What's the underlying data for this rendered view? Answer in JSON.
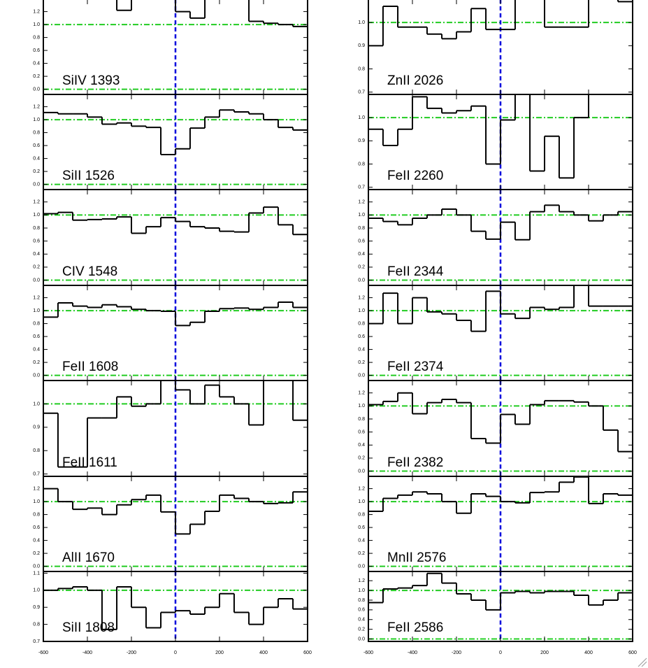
{
  "chart_data": [
    {
      "type": "step",
      "label": "SiIV 1393",
      "xlim": [
        -600,
        600
      ],
      "xticks": [
        -600,
        -400,
        -200,
        0,
        200,
        400,
        600
      ],
      "ylim": [
        -0.08,
        1.39
      ],
      "yticks": [
        {
          "value": 0,
          "label": "0.0"
        },
        0.2,
        0.4,
        0.6,
        0.8,
        {
          "value": 1,
          "label": "1.0"
        },
        1.2
      ],
      "hlines": [
        0,
        1
      ],
      "vlines": [
        0
      ],
      "color": "#000000",
      "x": [
        -567,
        -500,
        -433,
        -367,
        -300,
        -233,
        -167,
        -100,
        -33,
        33,
        100,
        167,
        233,
        300,
        367,
        433,
        500,
        567
      ],
      "values": [
        1.45,
        1.45,
        1.45,
        1.45,
        1.45,
        1.22,
        1.45,
        1.45,
        1.45,
        1.2,
        1.1,
        1.45,
        1.45,
        1.45,
        1.05,
        1.02,
        1.0,
        0.97
      ]
    },
    {
      "type": "step",
      "label": "SiII 1526",
      "xlim": [
        -600,
        600
      ],
      "xticks": [
        -600,
        -400,
        -200,
        0,
        200,
        400,
        600
      ],
      "ylim": [
        -0.08,
        1.39
      ],
      "yticks": [
        {
          "value": 0,
          "label": "0.0"
        },
        0.2,
        0.4,
        0.6,
        0.8,
        {
          "value": 1,
          "label": "1.0"
        },
        1.2
      ],
      "hlines": [
        0,
        1
      ],
      "vlines": [
        0
      ],
      "color": "#000000",
      "x": [
        -567,
        -500,
        -433,
        -367,
        -300,
        -233,
        -167,
        -100,
        -33,
        33,
        100,
        167,
        233,
        300,
        367,
        433,
        500,
        567
      ],
      "values": [
        1.11,
        1.09,
        1.09,
        1.04,
        0.93,
        0.95,
        0.9,
        0.88,
        0.46,
        0.55,
        0.87,
        1.04,
        1.15,
        1.12,
        1.09,
        1.0,
        0.88,
        0.84
      ]
    },
    {
      "type": "step",
      "label": "CIV 1548",
      "xlim": [
        -600,
        600
      ],
      "xticks": [
        -600,
        -400,
        -200,
        0,
        200,
        400,
        600
      ],
      "ylim": [
        -0.08,
        1.39
      ],
      "yticks": [
        {
          "value": 0,
          "label": "0.0"
        },
        0.2,
        0.4,
        0.6,
        0.8,
        {
          "value": 1,
          "label": "1.0"
        },
        1.2
      ],
      "hlines": [
        0,
        1
      ],
      "vlines": [
        0
      ],
      "color": "#000000",
      "x": [
        -567,
        -500,
        -433,
        -367,
        -300,
        -233,
        -167,
        -100,
        -33,
        33,
        100,
        167,
        233,
        300,
        367,
        433,
        500,
        567
      ],
      "values": [
        1.02,
        1.04,
        0.92,
        0.93,
        0.94,
        0.97,
        0.72,
        0.82,
        0.96,
        0.9,
        0.82,
        0.8,
        0.75,
        0.74,
        1.03,
        1.12,
        0.85,
        0.7
      ]
    },
    {
      "type": "step",
      "label": "FeII 1608",
      "xlim": [
        -600,
        600
      ],
      "xticks": [
        -600,
        -400,
        -200,
        0,
        200,
        400,
        600
      ],
      "ylim": [
        -0.08,
        1.39
      ],
      "yticks": [
        {
          "value": 0,
          "label": "0.0"
        },
        0.2,
        0.4,
        0.6,
        0.8,
        {
          "value": 1,
          "label": "1.0"
        },
        1.2
      ],
      "hlines": [
        0,
        1
      ],
      "vlines": [
        0
      ],
      "color": "#000000",
      "x": [
        -567,
        -500,
        -433,
        -367,
        -300,
        -233,
        -167,
        -100,
        -33,
        33,
        100,
        167,
        233,
        300,
        367,
        433,
        500,
        567
      ],
      "values": [
        0.9,
        1.12,
        1.07,
        1.05,
        1.09,
        1.06,
        1.02,
        1.0,
        0.99,
        0.77,
        0.82,
        0.99,
        1.03,
        1.04,
        1.02,
        1.05,
        1.13,
        1.05
      ]
    },
    {
      "type": "step",
      "label": "FeII 1611",
      "xlim": [
        -600,
        600
      ],
      "xticks": [
        -600,
        -400,
        -200,
        0,
        200,
        400,
        600
      ],
      "ylim": [
        0.69,
        1.1
      ],
      "yticks": [
        0.7,
        0.8,
        0.9,
        {
          "value": 1,
          "label": "1.0"
        },
        1.1
      ],
      "hlines": [
        1
      ],
      "vlines": [
        0
      ],
      "color": "#000000",
      "x": [
        -567,
        -500,
        -433,
        -367,
        -300,
        -233,
        -167,
        -100,
        -33,
        33,
        100,
        167,
        233,
        300,
        367,
        433,
        500,
        567
      ],
      "values": [
        0.96,
        0.73,
        0.73,
        0.94,
        0.94,
        1.03,
        0.99,
        1.0,
        1.12,
        1.06,
        1.0,
        1.08,
        1.03,
        1.0,
        0.91,
        1.12,
        1.12,
        0.93
      ]
    },
    {
      "type": "step",
      "label": "AlII 1670",
      "xlim": [
        -600,
        600
      ],
      "xticks": [
        -600,
        -400,
        -200,
        0,
        200,
        400,
        600
      ],
      "ylim": [
        -0.08,
        1.39
      ],
      "yticks": [
        {
          "value": 0,
          "label": "0.0"
        },
        0.2,
        0.4,
        0.6,
        0.8,
        {
          "value": 1,
          "label": "1.0"
        },
        1.2
      ],
      "hlines": [
        0,
        1
      ],
      "vlines": [
        0
      ],
      "color": "#000000",
      "x": [
        -567,
        -500,
        -433,
        -367,
        -300,
        -233,
        -167,
        -100,
        -33,
        33,
        100,
        167,
        233,
        300,
        367,
        433,
        500,
        567
      ],
      "values": [
        1.2,
        1.0,
        0.88,
        0.9,
        0.8,
        0.95,
        1.03,
        1.1,
        0.84,
        0.5,
        0.65,
        0.85,
        1.1,
        1.05,
        1.0,
        0.97,
        0.98,
        1.15
      ]
    },
    {
      "type": "step",
      "label": "SiII 1808",
      "xlim": [
        -600,
        600
      ],
      "xticks": [
        {
          "value": -600,
          "label": "-600"
        },
        {
          "value": -400,
          "label": "-400"
        },
        {
          "value": -200,
          "label": "-200"
        },
        0,
        200,
        400,
        600
      ],
      "ylim": [
        0.7,
        1.11
      ],
      "yticks": [
        0.7,
        0.8,
        0.9,
        {
          "value": 1,
          "label": "1.0"
        },
        1.1
      ],
      "hlines": [
        1
      ],
      "vlines": [
        0
      ],
      "color": "#000000",
      "x": [
        -567,
        -500,
        -433,
        -367,
        -300,
        -233,
        -167,
        -100,
        -33,
        33,
        100,
        167,
        233,
        300,
        367,
        433,
        500,
        567
      ],
      "values": [
        1.0,
        1.01,
        1.02,
        1.0,
        0.77,
        1.02,
        0.9,
        0.78,
        0.87,
        0.88,
        0.86,
        0.9,
        0.98,
        0.87,
        0.8,
        0.9,
        0.95,
        0.89
      ]
    },
    {
      "type": "step",
      "label": "ZnII 2026",
      "xlim": [
        -600,
        600
      ],
      "xticks": [
        -600,
        -400,
        -200,
        0,
        200,
        400,
        600
      ],
      "ylim": [
        0.69,
        1.1
      ],
      "yticks": [
        0.7,
        0.8,
        0.9,
        {
          "value": 1,
          "label": "1.0"
        },
        1.1
      ],
      "hlines": [
        1
      ],
      "vlines": [
        0
      ],
      "color": "#000000",
      "x": [
        -567,
        -500,
        -433,
        -367,
        -300,
        -233,
        -167,
        -100,
        -33,
        33,
        100,
        167,
        233,
        300,
        367,
        433,
        500,
        567
      ],
      "values": [
        0.9,
        1.07,
        0.98,
        0.98,
        0.95,
        0.93,
        0.96,
        1.06,
        0.97,
        0.97,
        1.15,
        1.15,
        0.98,
        0.98,
        0.98,
        1.15,
        1.15,
        1.09
      ]
    },
    {
      "type": "step",
      "label": "FeII 2260",
      "xlim": [
        -600,
        600
      ],
      "xticks": [
        -600,
        -400,
        -200,
        0,
        200,
        400,
        600
      ],
      "ylim": [
        0.69,
        1.1
      ],
      "yticks": [
        0.7,
        0.8,
        0.9,
        {
          "value": 1,
          "label": "1.0"
        },
        1.1
      ],
      "hlines": [
        1
      ],
      "vlines": [
        0
      ],
      "color": "#000000",
      "x": [
        -567,
        -500,
        -433,
        -367,
        -300,
        -233,
        -167,
        -100,
        -33,
        33,
        100,
        167,
        233,
        300,
        367,
        433,
        500,
        567
      ],
      "values": [
        0.95,
        0.88,
        0.95,
        1.09,
        1.04,
        1.02,
        1.03,
        1.05,
        0.8,
        0.99,
        1.12,
        0.77,
        0.92,
        0.74,
        1.0,
        1.12,
        1.12,
        1.12
      ]
    },
    {
      "type": "step",
      "label": "FeII 2344",
      "xlim": [
        -600,
        600
      ],
      "xticks": [
        -600,
        -400,
        -200,
        0,
        200,
        400,
        600
      ],
      "ylim": [
        -0.08,
        1.39
      ],
      "yticks": [
        {
          "value": 0,
          "label": "0.0"
        },
        0.2,
        0.4,
        0.6,
        0.8,
        {
          "value": 1,
          "label": "1.0"
        },
        1.2
      ],
      "hlines": [
        0,
        1
      ],
      "vlines": [
        0
      ],
      "color": "#000000",
      "x": [
        -567,
        -500,
        -433,
        -367,
        -300,
        -233,
        -167,
        -100,
        -33,
        33,
        100,
        167,
        233,
        300,
        367,
        433,
        500,
        567
      ],
      "values": [
        0.95,
        0.9,
        0.85,
        0.95,
        1.0,
        1.09,
        1.0,
        0.75,
        0.63,
        0.89,
        0.62,
        1.05,
        1.15,
        1.05,
        1.0,
        0.91,
        1.0,
        1.05
      ]
    },
    {
      "type": "step",
      "label": "FeII 2374",
      "xlim": [
        -600,
        600
      ],
      "xticks": [
        -600,
        -400,
        -200,
        0,
        200,
        400,
        600
      ],
      "ylim": [
        -0.08,
        1.39
      ],
      "yticks": [
        {
          "value": 0,
          "label": "0.0"
        },
        0.2,
        0.4,
        0.6,
        0.8,
        {
          "value": 1,
          "label": "1.0"
        },
        1.2
      ],
      "hlines": [
        0,
        1
      ],
      "vlines": [
        0
      ],
      "color": "#000000",
      "x": [
        -567,
        -500,
        -433,
        -367,
        -300,
        -233,
        -167,
        -100,
        -33,
        33,
        100,
        167,
        233,
        300,
        367,
        433,
        500,
        567
      ],
      "values": [
        0.8,
        1.27,
        0.8,
        1.2,
        0.98,
        0.95,
        0.85,
        0.68,
        1.3,
        0.95,
        0.88,
        1.05,
        1.02,
        1.05,
        1.45,
        1.07,
        1.07,
        1.07
      ]
    },
    {
      "type": "step",
      "label": "FeII 2382",
      "xlim": [
        -600,
        600
      ],
      "xticks": [
        -600,
        -400,
        -200,
        0,
        200,
        400,
        600
      ],
      "ylim": [
        -0.08,
        1.39
      ],
      "yticks": [
        {
          "value": 0,
          "label": "0.0"
        },
        0.2,
        0.4,
        0.6,
        0.8,
        {
          "value": 1,
          "label": "1.0"
        },
        1.2
      ],
      "hlines": [
        0,
        1
      ],
      "vlines": [
        0
      ],
      "color": "#000000",
      "x": [
        -567,
        -500,
        -433,
        -367,
        -300,
        -233,
        -167,
        -100,
        -33,
        33,
        100,
        167,
        233,
        300,
        367,
        433,
        500,
        567
      ],
      "values": [
        1.02,
        1.07,
        1.2,
        0.88,
        1.05,
        1.1,
        1.05,
        0.5,
        0.43,
        0.87,
        0.72,
        1.02,
        1.08,
        1.08,
        1.06,
        1.0,
        0.63,
        0.3
      ]
    },
    {
      "type": "step",
      "label": "MnII 2576",
      "xlim": [
        -600,
        600
      ],
      "xticks": [
        -600,
        -400,
        -200,
        0,
        200,
        400,
        600
      ],
      "ylim": [
        -0.08,
        1.39
      ],
      "yticks": [
        {
          "value": 0,
          "label": "0.0"
        },
        0.2,
        0.4,
        0.6,
        0.8,
        {
          "value": 1,
          "label": "1.0"
        },
        1.2
      ],
      "hlines": [
        0,
        1
      ],
      "vlines": [
        0
      ],
      "color": "#000000",
      "x": [
        -567,
        -500,
        -433,
        -367,
        -300,
        -233,
        -167,
        -100,
        -33,
        33,
        100,
        167,
        233,
        300,
        367,
        433,
        500,
        567
      ],
      "values": [
        0.85,
        1.05,
        1.1,
        1.15,
        1.12,
        1.0,
        0.82,
        1.12,
        1.08,
        1.0,
        0.98,
        1.14,
        1.15,
        1.3,
        1.38,
        0.97,
        1.12,
        1.1
      ]
    },
    {
      "type": "step",
      "label": "FeII 2586",
      "xlim": [
        -600,
        600
      ],
      "xticks": [
        {
          "value": -600,
          "label": "-600"
        },
        {
          "value": -400,
          "label": "-400"
        },
        {
          "value": -200,
          "label": "-200"
        },
        0,
        200,
        400,
        600
      ],
      "ylim": [
        -0.05,
        1.39
      ],
      "yticks": [
        {
          "value": 0,
          "label": "0.0"
        },
        0.2,
        0.4,
        0.6,
        0.8,
        {
          "value": 1,
          "label": "1.0"
        },
        1.2
      ],
      "hlines": [
        0,
        1
      ],
      "vlines": [
        0
      ],
      "color": "#000000",
      "x": [
        -567,
        -500,
        -433,
        -367,
        -300,
        -233,
        -167,
        -100,
        -33,
        33,
        100,
        167,
        233,
        300,
        367,
        433,
        500,
        567
      ],
      "values": [
        0.75,
        1.03,
        1.05,
        1.1,
        1.35,
        1.15,
        0.93,
        0.8,
        0.6,
        0.95,
        0.98,
        0.95,
        0.98,
        0.98,
        0.9,
        0.7,
        0.8,
        0.95
      ]
    }
  ],
  "styles": {
    "hline_color": "#22cc22",
    "vline_color": "#0000dd"
  }
}
